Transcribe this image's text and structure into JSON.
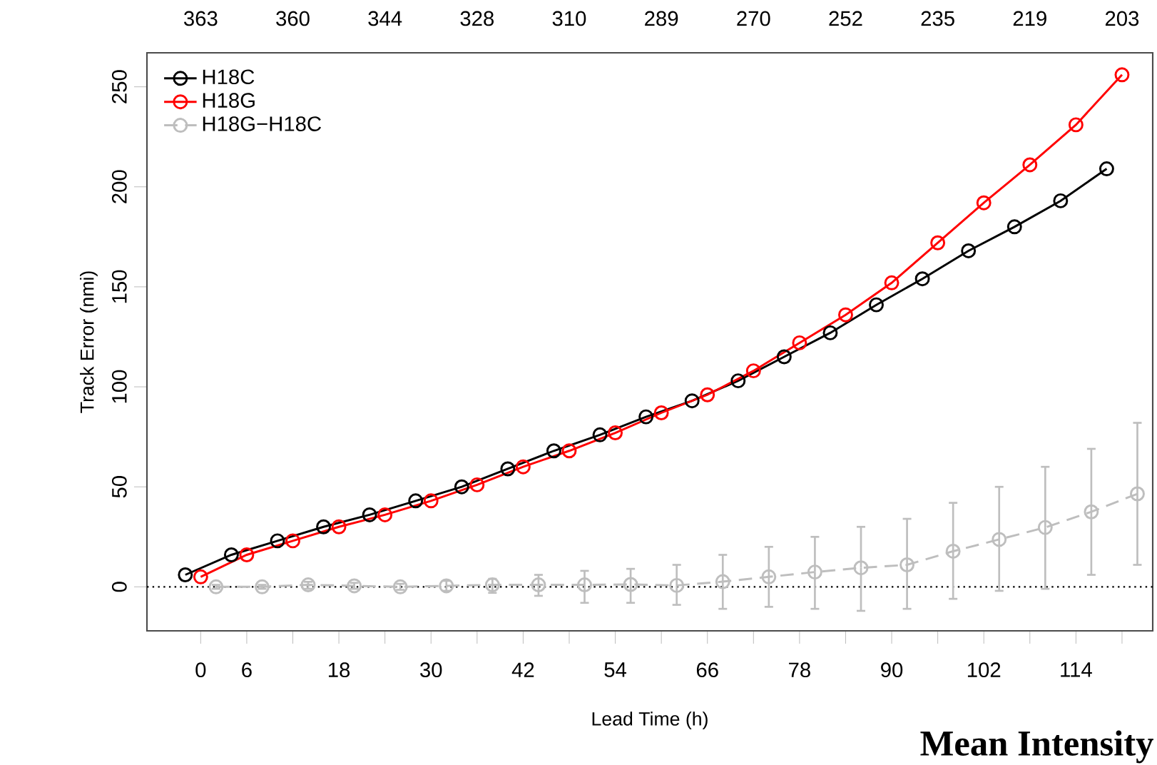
{
  "chart_data": {
    "type": "line",
    "xlabel": "Lead Time (h)",
    "ylabel": "Track Error (nmi)",
    "marker": "circle",
    "legend": "top left",
    "xlim": [
      -7,
      124
    ],
    "ylim": [
      -22,
      267
    ],
    "xticks": [
      0,
      6,
      {
        "value": 12,
        "label": null
      },
      18,
      {
        "value": 24,
        "label": null
      },
      30,
      {
        "value": 36,
        "label": null
      },
      42,
      {
        "value": 48,
        "label": null
      },
      54,
      {
        "value": 60,
        "label": null
      },
      66,
      {
        "value": 72,
        "label": null
      },
      78,
      {
        "value": 84,
        "label": null
      },
      90,
      {
        "value": 96,
        "label": null
      },
      102,
      {
        "value": 108,
        "label": null
      },
      114,
      {
        "value": 120,
        "label": null
      }
    ],
    "yticks": [
      0,
      50,
      100,
      150,
      200,
      250
    ],
    "ref_lines": [
      {
        "axis": "y",
        "value": 0,
        "line_style": "dotted",
        "color": "#000000"
      }
    ],
    "series": [
      {
        "name": "H18C",
        "color": "#000000",
        "line_style": "solid",
        "x": [
          -2,
          4,
          10,
          16,
          22,
          28,
          34,
          40,
          46,
          52,
          58,
          64,
          70,
          76,
          82,
          88,
          94,
          100,
          106,
          112,
          118
        ],
        "values": [
          6,
          16,
          23,
          30,
          36,
          43,
          50,
          59,
          68,
          76,
          85,
          93,
          103,
          115,
          127,
          141,
          154,
          168,
          180,
          193,
          209
        ]
      },
      {
        "name": "H18G",
        "color": "#ff0000",
        "line_style": "solid",
        "x": [
          0,
          6,
          12,
          18,
          24,
          30,
          36,
          42,
          48,
          54,
          60,
          66,
          72,
          78,
          84,
          90,
          96,
          102,
          108,
          114,
          120
        ],
        "values": [
          5,
          16,
          23,
          30,
          36,
          43,
          51,
          60,
          68,
          77,
          87,
          96,
          108,
          122,
          136,
          152,
          172,
          192,
          211,
          231,
          256
        ]
      },
      {
        "name": "H18G−H18C",
        "color": "#bebebe",
        "line_style": "dashed",
        "x": [
          2,
          8,
          14,
          20,
          26,
          32,
          38,
          44,
          50,
          56,
          62,
          68,
          74,
          80,
          86,
          92,
          98,
          104,
          110,
          116,
          122
        ],
        "values": [
          0,
          0,
          1,
          0.5,
          0,
          0.5,
          1,
          1,
          1,
          1.2,
          0.7,
          2.6,
          5,
          7.4,
          9.5,
          11,
          17.8,
          23.7,
          29.7,
          37.5,
          46.5
        ],
        "errors": [
          [
            -1,
            1
          ],
          [
            -1,
            1
          ],
          [
            -1,
            2.5
          ],
          [
            -1,
            2
          ],
          [
            -1.5,
            1.5
          ],
          [
            -2,
            3
          ],
          [
            -3,
            4
          ],
          [
            -4.5,
            6
          ],
          [
            -8,
            8
          ],
          [
            -8,
            9
          ],
          [
            -9,
            11
          ],
          [
            -11,
            16
          ],
          [
            -10,
            20
          ],
          [
            -11,
            25
          ],
          [
            -12,
            30
          ],
          [
            -11,
            34
          ],
          [
            -6,
            42
          ],
          [
            -2,
            50
          ],
          [
            -1,
            60
          ],
          [
            6,
            69
          ],
          [
            11,
            82
          ]
        ]
      }
    ],
    "annotations": [
      "363",
      "360",
      "344",
      "328",
      "310",
      "289",
      "270",
      "252",
      "235",
      "219",
      "203",
      "Mean Intensity"
    ]
  }
}
